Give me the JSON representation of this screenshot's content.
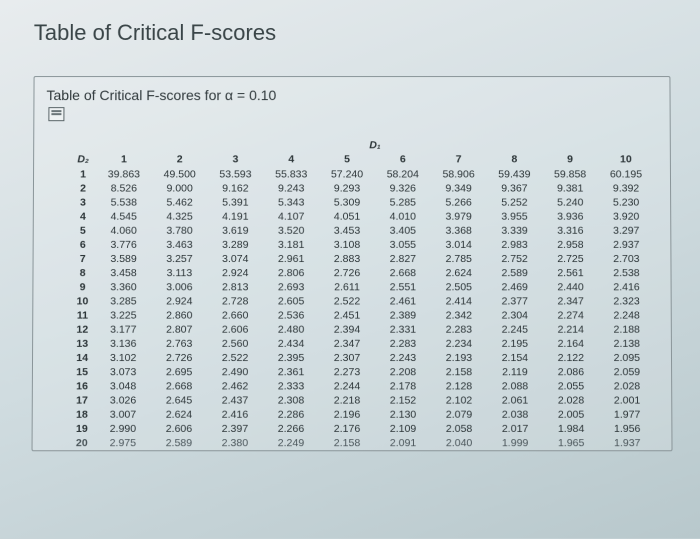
{
  "title": "Table of Critical F-scores",
  "subtitle": "Table of Critical F-scores for α = 0.10",
  "d1_label": "D₁",
  "d2_label": "D₂",
  "left_marker": "S",
  "columns": [
    "1",
    "2",
    "3",
    "4",
    "5",
    "6",
    "7",
    "8",
    "9",
    "10"
  ],
  "rows": [
    {
      "h": "1",
      "c": [
        "39.863",
        "49.500",
        "53.593",
        "55.833",
        "57.240",
        "58.204",
        "58.906",
        "59.439",
        "59.858",
        "60.195"
      ]
    },
    {
      "h": "2",
      "c": [
        "8.526",
        "9.000",
        "9.162",
        "9.243",
        "9.293",
        "9.326",
        "9.349",
        "9.367",
        "9.381",
        "9.392"
      ]
    },
    {
      "h": "3",
      "c": [
        "5.538",
        "5.462",
        "5.391",
        "5.343",
        "5.309",
        "5.285",
        "5.266",
        "5.252",
        "5.240",
        "5.230"
      ]
    },
    {
      "h": "4",
      "c": [
        "4.545",
        "4.325",
        "4.191",
        "4.107",
        "4.051",
        "4.010",
        "3.979",
        "3.955",
        "3.936",
        "3.920"
      ]
    },
    {
      "h": "5",
      "c": [
        "4.060",
        "3.780",
        "3.619",
        "3.520",
        "3.453",
        "3.405",
        "3.368",
        "3.339",
        "3.316",
        "3.297"
      ]
    },
    {
      "h": "6",
      "c": [
        "3.776",
        "3.463",
        "3.289",
        "3.181",
        "3.108",
        "3.055",
        "3.014",
        "2.983",
        "2.958",
        "2.937"
      ]
    },
    {
      "h": "7",
      "c": [
        "3.589",
        "3.257",
        "3.074",
        "2.961",
        "2.883",
        "2.827",
        "2.785",
        "2.752",
        "2.725",
        "2.703"
      ]
    },
    {
      "h": "8",
      "c": [
        "3.458",
        "3.113",
        "2.924",
        "2.806",
        "2.726",
        "2.668",
        "2.624",
        "2.589",
        "2.561",
        "2.538"
      ]
    },
    {
      "h": "9",
      "c": [
        "3.360",
        "3.006",
        "2.813",
        "2.693",
        "2.611",
        "2.551",
        "2.505",
        "2.469",
        "2.440",
        "2.416"
      ]
    },
    {
      "h": "10",
      "c": [
        "3.285",
        "2.924",
        "2.728",
        "2.605",
        "2.522",
        "2.461",
        "2.414",
        "2.377",
        "2.347",
        "2.323"
      ]
    },
    {
      "h": "11",
      "c": [
        "3.225",
        "2.860",
        "2.660",
        "2.536",
        "2.451",
        "2.389",
        "2.342",
        "2.304",
        "2.274",
        "2.248"
      ]
    },
    {
      "h": "12",
      "c": [
        "3.177",
        "2.807",
        "2.606",
        "2.480",
        "2.394",
        "2.331",
        "2.283",
        "2.245",
        "2.214",
        "2.188"
      ]
    },
    {
      "h": "13",
      "c": [
        "3.136",
        "2.763",
        "2.560",
        "2.434",
        "2.347",
        "2.283",
        "2.234",
        "2.195",
        "2.164",
        "2.138"
      ]
    },
    {
      "h": "14",
      "c": [
        "3.102",
        "2.726",
        "2.522",
        "2.395",
        "2.307",
        "2.243",
        "2.193",
        "2.154",
        "2.122",
        "2.095"
      ]
    },
    {
      "h": "15",
      "c": [
        "3.073",
        "2.695",
        "2.490",
        "2.361",
        "2.273",
        "2.208",
        "2.158",
        "2.119",
        "2.086",
        "2.059"
      ]
    },
    {
      "h": "16",
      "c": [
        "3.048",
        "2.668",
        "2.462",
        "2.333",
        "2.244",
        "2.178",
        "2.128",
        "2.088",
        "2.055",
        "2.028"
      ]
    },
    {
      "h": "17",
      "c": [
        "3.026",
        "2.645",
        "2.437",
        "2.308",
        "2.218",
        "2.152",
        "2.102",
        "2.061",
        "2.028",
        "2.001"
      ]
    },
    {
      "h": "18",
      "c": [
        "3.007",
        "2.624",
        "2.416",
        "2.286",
        "2.196",
        "2.130",
        "2.079",
        "2.038",
        "2.005",
        "1.977"
      ]
    },
    {
      "h": "19",
      "c": [
        "2.990",
        "2.606",
        "2.397",
        "2.266",
        "2.176",
        "2.109",
        "2.058",
        "2.017",
        "1.984",
        "1.956"
      ]
    },
    {
      "h": "20",
      "c": [
        "2.975",
        "2.589",
        "2.380",
        "2.249",
        "2.158",
        "2.091",
        "2.040",
        "1.999",
        "1.965",
        "1.937"
      ]
    }
  ],
  "style": {
    "background_gradient": [
      "#e8ecee",
      "#d0dce0",
      "#b8c8cc"
    ],
    "title_color": "#3a4548",
    "text_color": "#2b3437",
    "border_color": "#8a9599",
    "font_family": "Arial",
    "title_fontsize": 22,
    "subtitle_fontsize": 14,
    "cell_fontsize": 10.5,
    "num_format": "0.000"
  }
}
